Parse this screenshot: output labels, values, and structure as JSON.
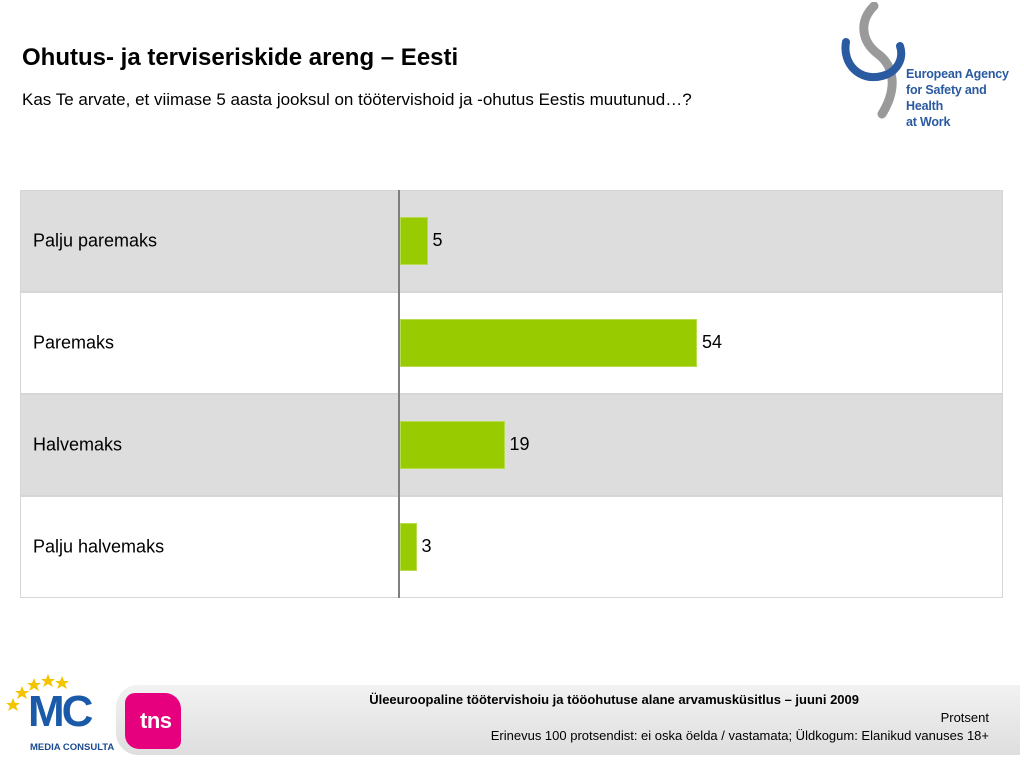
{
  "header": {
    "title": "Ohutus- ja terviseriskide areng – Eesti",
    "subtitle": "Kas Te arvate, et viimase 5 aasta jooksul on töötervishoid ja -ohutus Eestis muutunud…?"
  },
  "logos": {
    "agency_lines": [
      "European Agency",
      "for Safety and Health",
      "at Work"
    ],
    "mc_letters": "MC",
    "mc_subtitle": "MEDIA CONSULTA",
    "tns": "tns"
  },
  "colors": {
    "bar": "#99cc00",
    "row_shaded": "#dddddd",
    "tns_pink": "#e6007e",
    "agency_blue": "#2a5aa0"
  },
  "chart_data": {
    "type": "bar",
    "orientation": "horizontal",
    "categories": [
      "Palju paremaks",
      "Paremaks",
      "Halvemaks",
      "Palju halvemaks"
    ],
    "values": [
      5,
      54,
      19,
      3
    ],
    "value_labels": [
      "5",
      "54",
      "19",
      "3"
    ],
    "xlim": [
      0,
      100
    ],
    "grid": false,
    "legend": "none"
  },
  "footer": {
    "title": "Üleeuroopaline töötervishoiu ja tööohutuse alane arvamusküsitlus – juuni 2009",
    "unit": "Protsent",
    "note": "Erinevus 100 protsendist: ei oska öelda / vastamata; Üldkogum: Elanikud vanuses 18+"
  }
}
